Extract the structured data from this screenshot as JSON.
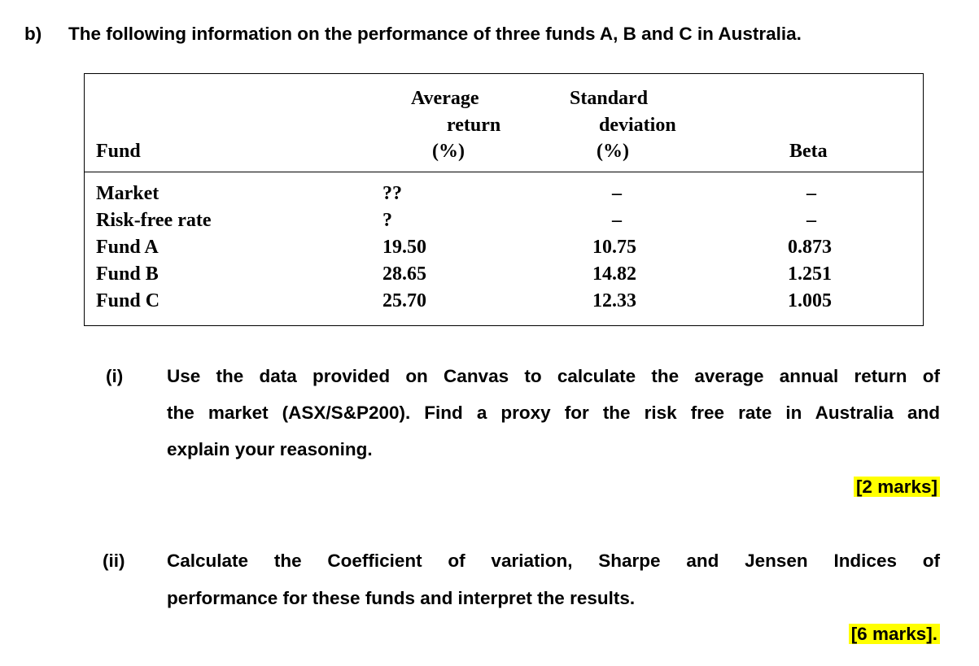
{
  "part": {
    "label": "b)",
    "text": "The following information on the performance of three funds A, B and C in Australia."
  },
  "table": {
    "header": {
      "fund": "Fund",
      "average_return": [
        "Average",
        "return",
        "(%)"
      ],
      "standard_deviation": [
        "Standard",
        "deviation",
        "(%)"
      ],
      "beta": "Beta"
    },
    "rows": [
      [
        "Market",
        "??",
        "–",
        "–"
      ],
      [
        "Risk-free rate",
        "?",
        "–",
        "–"
      ],
      [
        "Fund A",
        "19.50",
        "10.75",
        "0.873"
      ],
      [
        "Fund B",
        "28.65",
        "14.82",
        "1.251"
      ],
      [
        "Fund C",
        "25.70",
        "12.33",
        "1.005"
      ]
    ]
  },
  "questions": [
    {
      "label": "(i)",
      "lines": [
        "Use the data provided on Canvas to calculate the average annual return of",
        "the market (ASX/S&P200). Find a proxy for the risk free rate in Australia and",
        "explain your reasoning."
      ],
      "marks": "[2 marks]"
    },
    {
      "label": "(ii)",
      "lines": [
        "Calculate the Coefficient of variation, Sharpe and Jensen Indices of",
        "performance for these funds and interpret the results."
      ],
      "marks": "[6 marks]."
    }
  ]
}
